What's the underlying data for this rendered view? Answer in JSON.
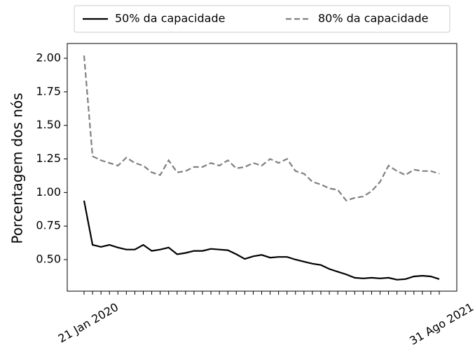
{
  "chart_data": {
    "type": "line",
    "y_label": "Porcentagem dos nós",
    "categories": [
      "21 Jan 2020",
      null,
      null,
      null,
      null,
      null,
      null,
      null,
      null,
      null,
      null,
      null,
      null,
      null,
      null,
      null,
      null,
      null,
      null,
      null,
      null,
      null,
      null,
      null,
      null,
      null,
      null,
      null,
      null,
      null,
      null,
      null,
      null,
      null,
      null,
      null,
      null,
      null,
      null,
      null,
      null,
      null,
      "31 Ago 2021"
    ],
    "series": [
      {
        "name": "50% da capacidade",
        "color": "#000000",
        "linestyle": "solid",
        "values": [
          0.94,
          0.61,
          0.595,
          0.61,
          0.59,
          0.575,
          0.575,
          0.61,
          0.565,
          0.575,
          0.59,
          0.54,
          0.55,
          0.565,
          0.565,
          0.58,
          0.575,
          0.57,
          0.54,
          0.505,
          0.525,
          0.535,
          0.515,
          0.52,
          0.52,
          0.5,
          0.485,
          0.47,
          0.46,
          0.43,
          0.41,
          0.39,
          0.365,
          0.36,
          0.365,
          0.36,
          0.365,
          0.35,
          0.355,
          0.375,
          0.38,
          0.375,
          0.355
        ]
      },
      {
        "name": "80% da capacidade",
        "color": "#808080",
        "linestyle": "dashed",
        "values": [
          2.02,
          1.27,
          1.24,
          1.22,
          1.2,
          1.26,
          1.22,
          1.2,
          1.15,
          1.13,
          1.24,
          1.15,
          1.16,
          1.19,
          1.19,
          1.22,
          1.2,
          1.24,
          1.18,
          1.19,
          1.22,
          1.2,
          1.25,
          1.22,
          1.25,
          1.16,
          1.14,
          1.08,
          1.06,
          1.03,
          1.02,
          0.94,
          0.96,
          0.97,
          1.01,
          1.08,
          1.2,
          1.16,
          1.13,
          1.17,
          1.16,
          1.16,
          1.14
        ]
      }
    ],
    "ylim": [
      0.265,
      2.11
    ],
    "yticks": [
      {
        "value": 0.5,
        "label": "0.50"
      },
      {
        "value": 0.75,
        "label": "0.75"
      },
      {
        "value": 1.0,
        "label": "1.00"
      },
      {
        "value": 1.25,
        "label": "1.25"
      },
      {
        "value": 1.5,
        "label": "1.50"
      },
      {
        "value": 1.75,
        "label": "1.75"
      },
      {
        "value": 2.0,
        "label": "2.00"
      }
    ],
    "legend": "top",
    "grid": false
  }
}
